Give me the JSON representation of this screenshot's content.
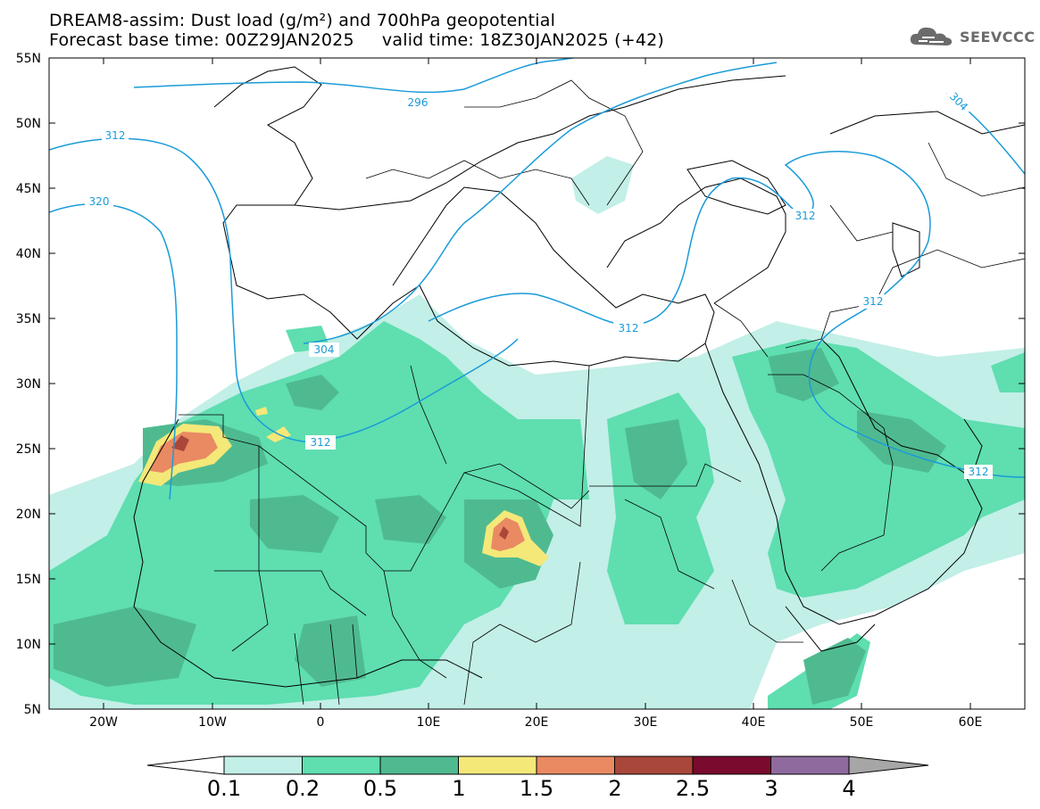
{
  "title": {
    "line1": "DREAM8-assim: Dust load (g/m²) and 700hPa geopotential",
    "line2": "Forecast base time: 00Z29JAN2025     valid time: 18Z30JAN2025 (+42)"
  },
  "logo": {
    "text": "SEEVCCC",
    "icon": "cloud-logo-icon"
  },
  "map": {
    "lat_labels": [
      "55N",
      "50N",
      "45N",
      "40N",
      "35N",
      "30N",
      "25N",
      "20N",
      "15N",
      "10N",
      "5N"
    ],
    "lon_labels": [
      "20W",
      "10W",
      "0",
      "10E",
      "20E",
      "30E",
      "40E",
      "50E",
      "60E"
    ],
    "contour_labels": [
      "296",
      "304",
      "312",
      "320",
      "312",
      "312",
      "304",
      "312",
      "312"
    ]
  },
  "colorbar": {
    "labels": [
      "0.1",
      "0.2",
      "0.5",
      "1",
      "1.5",
      "2",
      "2.5",
      "3",
      "4"
    ],
    "colors": [
      "#ffffff",
      "#c2efe7",
      "#5fdeb0",
      "#4fba90",
      "#f4e879",
      "#e98a63",
      "#a9473a",
      "#7a0a2e",
      "#8e6a9e",
      "#a6a6a6"
    ]
  },
  "colors": {
    "contour": "#1a9bd8",
    "dust_0_1": "#c2efe7",
    "dust_0_2": "#5fdeb0",
    "dust_0_5": "#4fba90",
    "dust_1": "#f4e879",
    "dust_1_5": "#e98a63",
    "dust_2": "#a9473a"
  }
}
